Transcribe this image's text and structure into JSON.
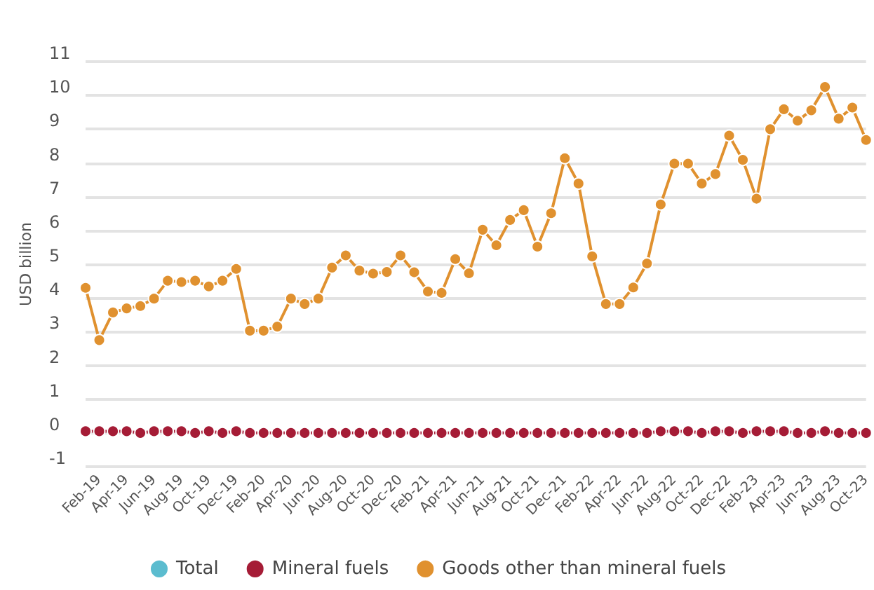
{
  "chart_data": {
    "type": "line",
    "ylabel": "USD billion",
    "categories": [
      null,
      "Feb-19",
      null,
      "Apr-19",
      null,
      "Jun-19",
      null,
      "Aug-19",
      null,
      "Oct-19",
      null,
      "Dec-19",
      null,
      "Feb-20",
      null,
      "Apr-20",
      null,
      "Jun-20",
      null,
      "Aug-20",
      null,
      "Oct-20",
      null,
      "Dec-20",
      null,
      "Feb-21",
      null,
      "Apr-21",
      null,
      "Jun-21",
      null,
      "Aug-21",
      null,
      "Oct-21",
      null,
      "Dec-21",
      null,
      "Feb-22",
      null,
      "Apr-22",
      null,
      "Jun-22",
      null,
      "Aug-22",
      null,
      "Oct-22",
      null,
      "Dec-22",
      null,
      "Feb-23",
      null,
      "Apr-23",
      null,
      "Jun-23",
      null,
      "Aug-23",
      null,
      "Oct-23"
    ],
    "series": [
      {
        "name": "Total",
        "color": "#5bbccf",
        "values": [
          null,
          null,
          null,
          null,
          null,
          null,
          null,
          null,
          null,
          null,
          null,
          null,
          null,
          null,
          null,
          null,
          null,
          null,
          null,
          null,
          null,
          null,
          null,
          null,
          null,
          null,
          null,
          null,
          null,
          null,
          null,
          null,
          null,
          null,
          null,
          null,
          null,
          null,
          null,
          null,
          null,
          null,
          null,
          null,
          null,
          null,
          null,
          null,
          null,
          null,
          null,
          null,
          null,
          null,
          null,
          null,
          null,
          null
        ]
      },
      {
        "name": "Mineral fuels",
        "color": "#a51c36",
        "values": [
          0.05,
          0.05,
          0.05,
          0.05,
          0,
          0.05,
          0.05,
          0.05,
          0,
          0.05,
          0,
          0.05,
          0,
          0,
          0,
          0,
          0,
          0,
          0,
          0,
          0,
          0,
          0,
          0,
          0,
          0,
          0,
          0,
          0,
          0,
          0,
          0,
          0,
          0,
          0,
          0,
          0,
          0,
          0,
          0,
          0,
          0,
          0.05,
          0.05,
          0.05,
          0,
          0.05,
          0.05,
          0,
          0.05,
          0.05,
          0.05,
          0,
          0,
          0.05,
          0,
          0,
          0
        ]
      },
      {
        "name": "Goods other than mineral fuels",
        "color": "#e0912f",
        "values": [
          4.3,
          2.75,
          3.57,
          3.69,
          3.76,
          3.98,
          4.51,
          4.47,
          4.51,
          4.34,
          4.51,
          4.86,
          3.03,
          3.03,
          3.15,
          3.98,
          3.82,
          3.98,
          4.9,
          5.26,
          4.81,
          4.72,
          4.77,
          5.26,
          4.76,
          4.19,
          4.15,
          5.15,
          4.73,
          6.02,
          5.56,
          6.31,
          6.6,
          5.52,
          6.51,
          8.14,
          7.39,
          5.23,
          3.82,
          3.82,
          4.31,
          5.02,
          6.77,
          7.98,
          7.98,
          7.39,
          7.67,
          8.81,
          8.09,
          6.94,
          9.0,
          9.59,
          9.25,
          9.56,
          10.25,
          9.31,
          9.64,
          8.68
        ]
      }
    ],
    "ylim": [
      -1,
      11
    ],
    "yticks": [
      -1,
      0,
      1,
      2,
      3,
      4,
      5,
      6,
      7,
      8,
      9,
      10,
      11
    ],
    "grid": "y",
    "legend": "bottom",
    "marker": "circle",
    "line_style": "solid"
  }
}
